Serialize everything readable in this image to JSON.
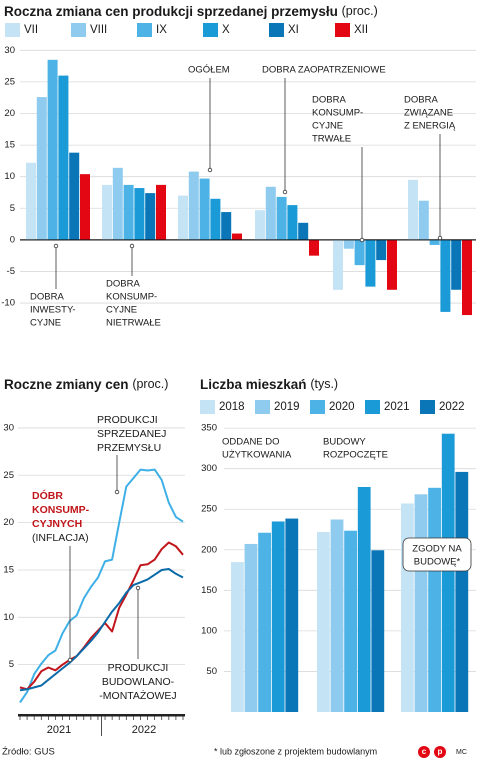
{
  "chart_data": [
    {
      "type": "bar",
      "title": "Roczna zmiana cen produkcji sprzedanej przemysłu",
      "subtitle": "(proc.)",
      "categories": [
        [
          "DOBRA",
          "INWESTY-",
          "CYJNE"
        ],
        [
          "DOBRA",
          "KONSUMP-",
          "CYJNE",
          "NIETRWAŁE"
        ],
        [
          "OGÓŁEM"
        ],
        [
          "DOBRA ZAOPATRZENIOWE"
        ],
        [
          "DOBRA",
          "KONSUMP-",
          "CYJNE",
          "TRWAŁE"
        ],
        [
          "DOBRA",
          "ZWIĄZANE",
          "Z ENERGIĄ"
        ]
      ],
      "series": [
        {
          "name": "VII",
          "color": "#c4e3f5",
          "values": [
            12.2,
            8.7,
            7.0,
            4.7,
            -7.9,
            9.5
          ]
        },
        {
          "name": "VIII",
          "color": "#8ecbee",
          "values": [
            22.6,
            11.4,
            10.8,
            8.4,
            -1.4,
            6.2
          ]
        },
        {
          "name": "IX",
          "color": "#4db3e6",
          "values": [
            28.5,
            8.7,
            9.7,
            6.8,
            -4.0,
            -0.8
          ]
        },
        {
          "name": "X",
          "color": "#1a9ad6",
          "values": [
            26.0,
            8.2,
            6.5,
            5.5,
            -7.4,
            -11.4
          ]
        },
        {
          "name": "XI",
          "color": "#0a76b8",
          "values": [
            13.8,
            7.4,
            4.4,
            2.7,
            -3.2,
            -7.9
          ]
        },
        {
          "name": "XII",
          "color": "#e30613",
          "values": [
            10.4,
            8.7,
            1.0,
            -2.5,
            -7.9,
            -11.9
          ]
        }
      ],
      "ylim": [
        -13,
        31
      ],
      "yticks": [
        -10,
        -5,
        0,
        5,
        10,
        15,
        20,
        25,
        30
      ],
      "grid": true
    },
    {
      "type": "line",
      "title": "Roczne zmiany cen",
      "subtitle": "(proc.)",
      "categories": [
        null,
        null,
        null,
        null,
        null,
        null,
        null,
        null,
        null,
        null,
        null,
        null,
        null,
        null,
        null,
        null,
        null,
        null,
        null,
        null,
        null,
        null,
        null,
        null
      ],
      "x_groups": [
        "2021",
        "2022"
      ],
      "series": [
        {
          "name": [
            "PRODUKCJI",
            "SPRZEDANEJ",
            "PRZEMYSŁU"
          ],
          "color": "#3fb0e6",
          "values": [
            1.0,
            2.1,
            4.0,
            5.1,
            6.0,
            6.5,
            8.3,
            9.6,
            10.2,
            12.0,
            13.2,
            14.2,
            15.9,
            16.1,
            20.0,
            23.8,
            24.7,
            25.6,
            25.5,
            25.6,
            24.5,
            22.1,
            20.6,
            20.1
          ]
        },
        {
          "name": [
            "DÓBR",
            "KONSUMP-",
            "CYJNYCH"
          ],
          "note": "(INFLACJA)",
          "color": "#c0151b",
          "values": [
            2.6,
            2.4,
            3.2,
            4.3,
            4.7,
            4.4,
            5.0,
            5.5,
            5.9,
            6.8,
            7.8,
            8.6,
            9.4,
            8.5,
            11.0,
            12.4,
            13.9,
            15.5,
            15.6,
            16.1,
            17.2,
            17.9,
            17.5,
            16.6
          ]
        },
        {
          "name": [
            "PRODUKCJI",
            "BUDOWLANO-",
            "-MONTAŻOWEJ"
          ],
          "color": "#0a6aa8",
          "values": [
            2.3,
            2.4,
            2.6,
            2.8,
            3.4,
            4.0,
            4.6,
            5.2,
            5.9,
            6.7,
            7.5,
            8.4,
            9.5,
            10.6,
            11.5,
            12.6,
            13.4,
            13.7,
            14.0,
            14.5,
            15.0,
            15.1,
            14.6,
            14.2
          ]
        }
      ],
      "ylim": [
        0,
        32
      ],
      "yticks": [
        5,
        10,
        15,
        20,
        25,
        30
      ],
      "grid": true
    },
    {
      "type": "bar",
      "title": "Liczba mieszkań",
      "subtitle": "(tys.)",
      "categories": [
        [
          "ODDANE DO",
          "UŻYTKOWANIA"
        ],
        [
          "BUDOWY",
          "ROZPOCZĘTE"
        ],
        [
          "ZGODY NA",
          "BUDOWĘ*"
        ]
      ],
      "series": [
        {
          "name": "2018",
          "color": "#c4e3f5",
          "values": [
            184.8,
            221.9,
            257.1
          ]
        },
        {
          "name": "2019",
          "color": "#8ecbee",
          "values": [
            207.2,
            237.3,
            268.4
          ]
        },
        {
          "name": "2020",
          "color": "#4db3e6",
          "values": [
            221.0,
            223.5,
            276.4
          ]
        },
        {
          "name": "2021",
          "color": "#1a9ad6",
          "values": [
            234.9,
            277.4,
            343.1
          ]
        },
        {
          "name": "2022",
          "color": "#0a76b8",
          "values": [
            238.5,
            199.4,
            296.0
          ]
        }
      ],
      "ylim": [
        0,
        360
      ],
      "yticks": [
        50,
        100,
        150,
        200,
        250,
        300,
        350
      ],
      "grid": true,
      "footnote": "* lub zgłoszone z projektem budowlanym"
    }
  ],
  "source": "Źródło: GUS",
  "logo": [
    "c",
    "p"
  ],
  "credit": "MC"
}
